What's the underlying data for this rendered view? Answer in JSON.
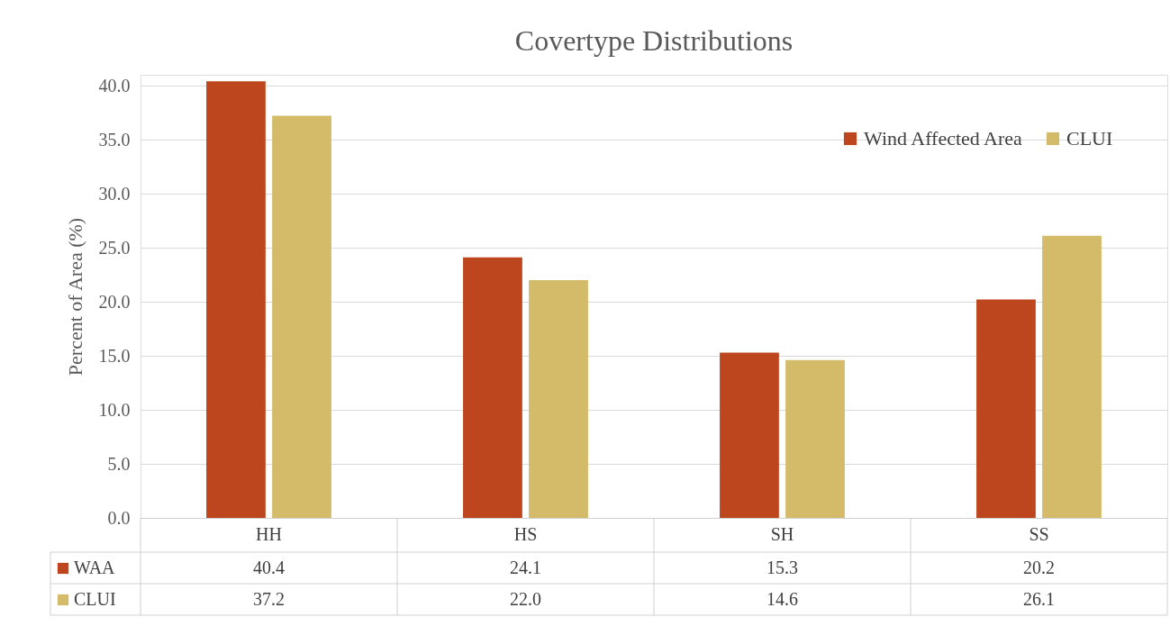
{
  "chart_data": {
    "type": "bar",
    "title": "Covertype Distributions",
    "ylabel": "Percent of Area (%)",
    "categories": [
      "HH",
      "HS",
      "SH",
      "SS"
    ],
    "series": [
      {
        "name": "Wind Affected Area",
        "color": "#bd461f",
        "values": [
          40.4,
          24.1,
          15.3,
          20.2
        ],
        "value_labels": [
          "40.4",
          "24.1",
          "15.3",
          "20.2"
        ]
      },
      {
        "name": "CLUI",
        "color": "#d4bb6a",
        "values": [
          37.2,
          22.0,
          14.6,
          26.1
        ],
        "value_labels": [
          "37.2",
          "22.0",
          "14.6",
          "26.1"
        ]
      }
    ],
    "annotations": [
      "WAA",
      "CLUI"
    ],
    "ylim": [
      0,
      41
    ],
    "yticks": [
      {
        "value": 0,
        "label": "0.0"
      },
      {
        "value": 5,
        "label": "5.0"
      },
      {
        "value": 10,
        "label": "10.0"
      },
      {
        "value": 15,
        "label": "15.0"
      },
      {
        "value": 20,
        "label": "20.0"
      },
      {
        "value": 25,
        "label": "25.0"
      },
      {
        "value": 30,
        "label": "30.0"
      },
      {
        "value": 35,
        "label": "35.0"
      },
      {
        "value": 40,
        "label": "40.0"
      }
    ],
    "grid": "y",
    "legend": "top right"
  }
}
